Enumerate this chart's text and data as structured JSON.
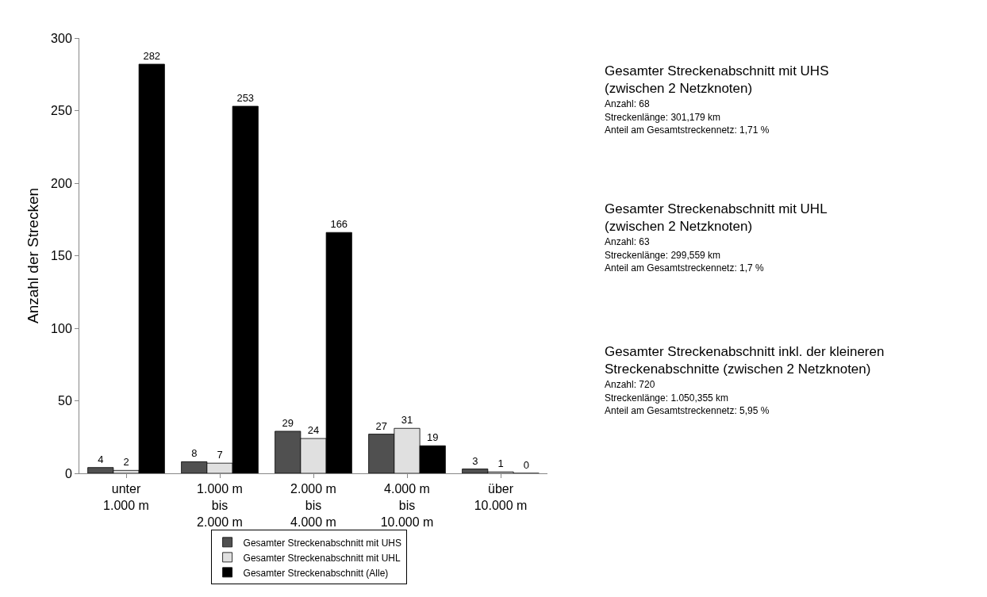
{
  "chart_data": {
    "type": "bar",
    "ylabel": "Anzahl der Strecken",
    "categories": [
      "unter\n1.000 m",
      "1.000 m\nbis\n2.000 m",
      "2.000 m\nbis\n4.000 m",
      "4.000 m\nbis\n10.000 m",
      "über\n10.000 m"
    ],
    "series": [
      {
        "name": "Gesamter Streckenabschnitt mit UHS",
        "color": "#505050",
        "values": [
          4,
          8,
          29,
          27,
          3
        ]
      },
      {
        "name": "Gesamter Streckenabschnitt mit UHL",
        "color": "#e0e0e0",
        "values": [
          2,
          7,
          24,
          31,
          1
        ]
      },
      {
        "name": "Gesamter Streckenabschnitt (Alle)",
        "color": "#000000",
        "values": [
          282,
          253,
          166,
          19,
          0
        ]
      }
    ],
    "ylim": [
      0,
      300
    ],
    "yticks": [
      0,
      50,
      100,
      150,
      200,
      250,
      300
    ],
    "legend": "bottom",
    "data_labels": true,
    "annotations": [
      "Gesamter Streckenabschnitt mit UHS\n(zwischen 2 Netzknoten)",
      "Anzahl: 68",
      "Streckenlänge: 301,179 km",
      "Anteil am Gesamtstreckennetz: 1,71 %",
      "Gesamter Streckenabschnitt mit UHL\n(zwischen 2 Netzknoten)",
      "Anzahl: 63",
      "Streckenlänge: 299,559 km",
      "Anteil am Gesamtstreckennetz: 1,7 %",
      "Gesamter Streckenabschnitt inkl. der kleineren\nStreckenabschnitte (zwischen 2 Netzknoten)",
      "Anzahl: 720",
      "Streckenlänge: 1.050,355 km",
      "Anteil am Gesamtstreckennetz: 5,95 %"
    ]
  }
}
